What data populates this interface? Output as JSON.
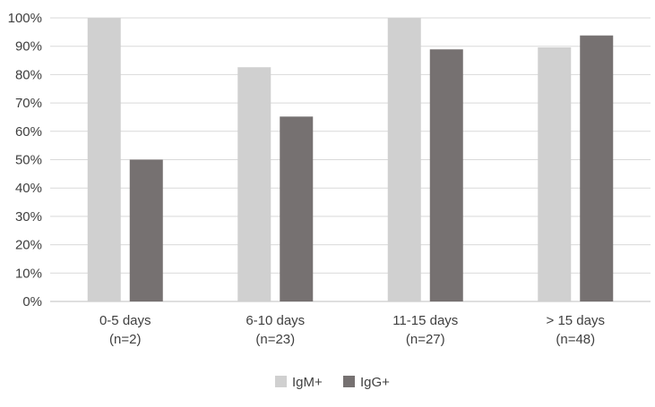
{
  "chart_data": {
    "type": "bar",
    "title": "",
    "xlabel": "",
    "ylabel": "",
    "categories": [
      [
        "0-5 days",
        "(n=2)"
      ],
      [
        "6-10 days",
        "(n=23)"
      ],
      [
        "11-15 days",
        "(n=27)"
      ],
      [
        "> 15 days",
        "(n=48)"
      ]
    ],
    "series": [
      {
        "name": "IgM+",
        "color": "#d0d0d0",
        "values": [
          100,
          82.6,
          100,
          89.6
        ]
      },
      {
        "name": "IgG+",
        "color": "#767171",
        "values": [
          50,
          65.2,
          88.9,
          93.8
        ]
      }
    ],
    "ylim": [
      0,
      100
    ],
    "yticks": [
      "0%",
      "10%",
      "20%",
      "30%",
      "40%",
      "50%",
      "60%",
      "70%",
      "80%",
      "90%",
      "100%"
    ],
    "grid": true,
    "legend_position": "bottom"
  }
}
